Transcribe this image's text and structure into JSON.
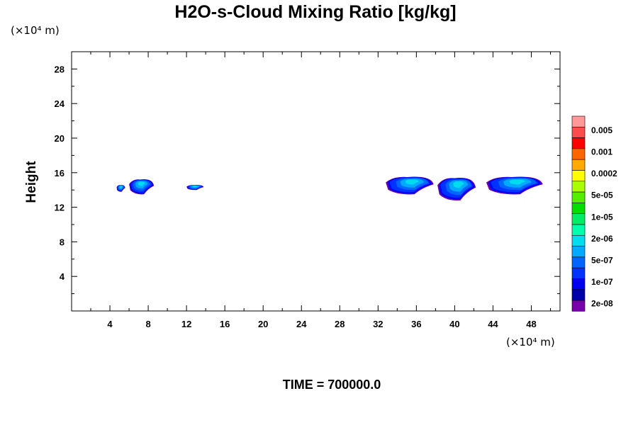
{
  "chart_data": {
    "type": "contour",
    "title": "H2O-s-Cloud Mixing Ratio [kg/kg]",
    "ylabel": "Height",
    "x_unit": "(×10⁴ m)",
    "y_unit": "(×10⁴ m)",
    "footer": "TIME = 700000.0",
    "xlim": [
      0,
      51
    ],
    "ylim": [
      0,
      30
    ],
    "x_ticks": [
      4,
      8,
      12,
      16,
      20,
      24,
      28,
      32,
      36,
      40,
      44,
      48
    ],
    "y_ticks": [
      4,
      8,
      12,
      16,
      20,
      24,
      28
    ],
    "grid": false,
    "colorbar": {
      "labels": [
        "0.005",
        "0.001",
        "0.0002",
        "5e-05",
        "1e-05",
        "2e-06",
        "5e-07",
        "1e-07",
        "2e-08"
      ],
      "colors": [
        "#ff9999",
        "#ff4d4d",
        "#ff0000",
        "#ff6600",
        "#ffaa00",
        "#ffff00",
        "#aaff00",
        "#55ee00",
        "#00dd00",
        "#00ee66",
        "#00ffaa",
        "#00ddee",
        "#00aaff",
        "#0066ff",
        "#0033ff",
        "#0000ee",
        "#0000aa",
        "#7700aa"
      ]
    },
    "cloud_regions": [
      {
        "x": [
          4.7,
          5.6
        ],
        "y": [
          13.8,
          14.6
        ]
      },
      {
        "x": [
          6.0,
          8.6
        ],
        "y": [
          13.5,
          15.3
        ]
      },
      {
        "x": [
          12.0,
          13.8
        ],
        "y": [
          14.0,
          14.6
        ]
      },
      {
        "x": [
          32.8,
          37.8
        ],
        "y": [
          13.5,
          15.6
        ]
      },
      {
        "x": [
          38.2,
          42.2
        ],
        "y": [
          12.8,
          15.5
        ]
      },
      {
        "x": [
          43.3,
          49.2
        ],
        "y": [
          13.5,
          15.6
        ]
      }
    ]
  }
}
